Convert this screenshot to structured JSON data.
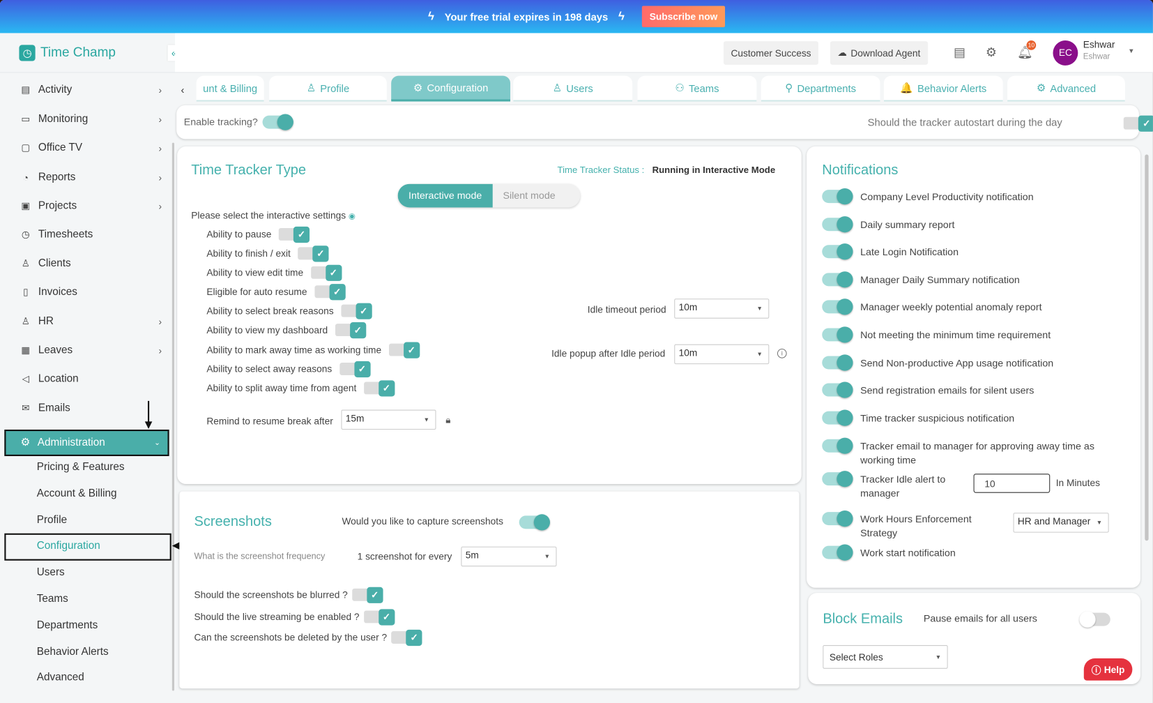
{
  "banner": {
    "message": "Your free trial expires in 198 days",
    "subscribe": "Subscribe now"
  },
  "app": {
    "name": "Time Champ",
    "collapse": "«"
  },
  "header": {
    "customer_success": "Customer Success",
    "download_agent": "Download Agent",
    "notification_count": "10",
    "user_initials": "EC",
    "user_name": "Eshwar",
    "user_sub": "Eshwar"
  },
  "sidebar": {
    "items": [
      {
        "label": "Activity",
        "icon": "activity-icon",
        "glyph": "▤",
        "chevron": true
      },
      {
        "label": "Monitoring",
        "icon": "monitor-icon",
        "glyph": "▭",
        "chevron": true
      },
      {
        "label": "Office TV",
        "icon": "tv-icon",
        "glyph": "▢",
        "chevron": true
      },
      {
        "label": "Reports",
        "icon": "pie-chart-icon",
        "glyph": "◔",
        "chevron": true
      },
      {
        "label": "Projects",
        "icon": "briefcase-icon",
        "glyph": "▣",
        "chevron": true
      },
      {
        "label": "Timesheets",
        "icon": "clock-icon",
        "glyph": "◷",
        "chevron": false
      },
      {
        "label": "Clients",
        "icon": "user-icon",
        "glyph": "♙",
        "chevron": false
      },
      {
        "label": "Invoices",
        "icon": "invoice-icon",
        "glyph": "▯",
        "chevron": false
      },
      {
        "label": "HR",
        "icon": "hr-icon",
        "glyph": "♙",
        "chevron": true
      },
      {
        "label": "Leaves",
        "icon": "calendar-icon",
        "glyph": "▦",
        "chevron": true
      },
      {
        "label": "Location",
        "icon": "location-icon",
        "glyph": "◁",
        "chevron": false
      },
      {
        "label": "Emails",
        "icon": "mail-icon",
        "glyph": "✉",
        "chevron": false
      }
    ],
    "admin": "Administration",
    "subitems": [
      "Pricing & Features",
      "Account & Billing",
      "Profile",
      "Configuration",
      "Users",
      "Teams",
      "Departments",
      "Behavior Alerts",
      "Advanced"
    ],
    "active_sub": 3
  },
  "tabs": [
    {
      "label": "unt & Billing",
      "icon": ""
    },
    {
      "label": "Profile",
      "icon": "♙"
    },
    {
      "label": "Configuration",
      "icon": "⚙"
    },
    {
      "label": "Users",
      "icon": "♙"
    },
    {
      "label": "Teams",
      "icon": "⚇"
    },
    {
      "label": "Departments",
      "icon": "⚲"
    },
    {
      "label": "Behavior Alerts",
      "icon": "🔔"
    },
    {
      "label": "Advanced",
      "icon": "⚙"
    }
  ],
  "active_tab": 2,
  "tracking": {
    "enable_label": "Enable tracking?",
    "autostart_label": "Should the tracker autostart during the day"
  },
  "tracker": {
    "title": "Time Tracker Type",
    "status_label": "Time Tracker Status :",
    "status_value": "Running in Interactive Mode",
    "mode_interactive": "Interactive mode",
    "mode_silent": "Silent mode",
    "settings_label": "Please select the interactive settings",
    "settings": [
      {
        "label": "Ability to pause",
        "checked": true
      },
      {
        "label": "Ability to finish / exit",
        "checked": true
      },
      {
        "label": "Ability to view edit time",
        "checked": true
      },
      {
        "label": "Eligible for auto resume",
        "checked": true
      },
      {
        "label": "Ability to select break reasons",
        "checked": true
      },
      {
        "label": "Ability to view my dashboard",
        "checked": true
      },
      {
        "label": "Ability to mark away time as working time",
        "checked": true
      },
      {
        "label": "Ability to select away reasons",
        "checked": true
      },
      {
        "label": "Ability to split away time from agent",
        "checked": true
      }
    ],
    "remind_label": "Remind to resume break after",
    "remind_value": "15m",
    "idle_timeout_label": "Idle timeout period",
    "idle_timeout_value": "10m",
    "idle_popup_label": "Idle popup after Idle period",
    "idle_popup_value": "10m"
  },
  "screenshots": {
    "title": "Screenshots",
    "capture_label": "Would you like to capture screenshots",
    "frequency_label": "What is the screenshot frequency",
    "every_label": "1 screenshot for every",
    "every_value": "5m",
    "options": [
      {
        "label": "Should the screenshots be blurred ?",
        "checked": true
      },
      {
        "label": "Should the live streaming be enabled ?",
        "checked": true
      },
      {
        "label": "Can the screenshots be deleted by the user ?",
        "checked": true
      }
    ]
  },
  "notifications": {
    "title": "Notifications",
    "items": [
      "Company Level Productivity notification",
      "Daily summary report",
      "Late Login Notification",
      "Manager Daily Summary notification",
      "Manager weekly potential anomaly report",
      "Not meeting the minimum time requirement",
      "Send Non-productive App usage notification",
      "Send registration emails for silent users",
      "Time tracker suspicious notification",
      "Tracker email to manager for approving away time as working time"
    ],
    "idle_alert_label": "Tracker Idle alert to manager",
    "idle_alert_value": "10",
    "idle_alert_unit": "In Minutes",
    "work_hours_label": "Work Hours Enforcement Strategy",
    "work_hours_value": "HR and Manager",
    "work_start_label": "Work start notification"
  },
  "block_emails": {
    "title": "Block Emails",
    "pause_label": "Pause emails for all users",
    "pause_on": false,
    "roles_placeholder": "Select Roles"
  },
  "help": "Help",
  "colors": {
    "accent": "#4aaea9",
    "accent_light": "#a7dcd9",
    "help": "#e5323e"
  }
}
